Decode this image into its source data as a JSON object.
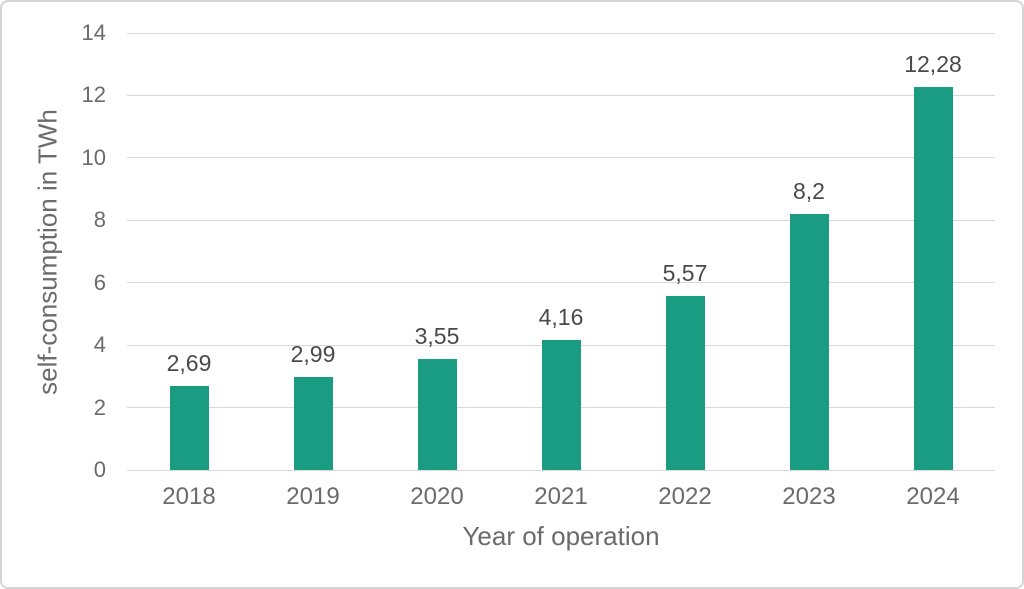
{
  "chart_data": {
    "type": "bar",
    "title": "",
    "categories": [
      "2018",
      "2019",
      "2020",
      "2021",
      "2022",
      "2023",
      "2024"
    ],
    "values": [
      2.69,
      2.99,
      3.55,
      4.16,
      5.57,
      8.2,
      12.28
    ],
    "value_labels": [
      "2,69",
      "2,99",
      "3,55",
      "4,16",
      "5,57",
      "8,2",
      "12,28"
    ],
    "xlabel": "Year of operation",
    "ylabel": "self-consumption in TWh",
    "ylim": [
      0,
      14
    ],
    "yticks": [
      0,
      2,
      4,
      6,
      8,
      10,
      12,
      14
    ],
    "grid": true,
    "legend": "none",
    "colors": {
      "bar": "#1a9c82",
      "gridline": "#d9d9d9",
      "tick_text": "#6b6b6b",
      "data_label_text": "#4a4a4a",
      "border": "#d4d4d4",
      "background": "#ffffff"
    }
  }
}
